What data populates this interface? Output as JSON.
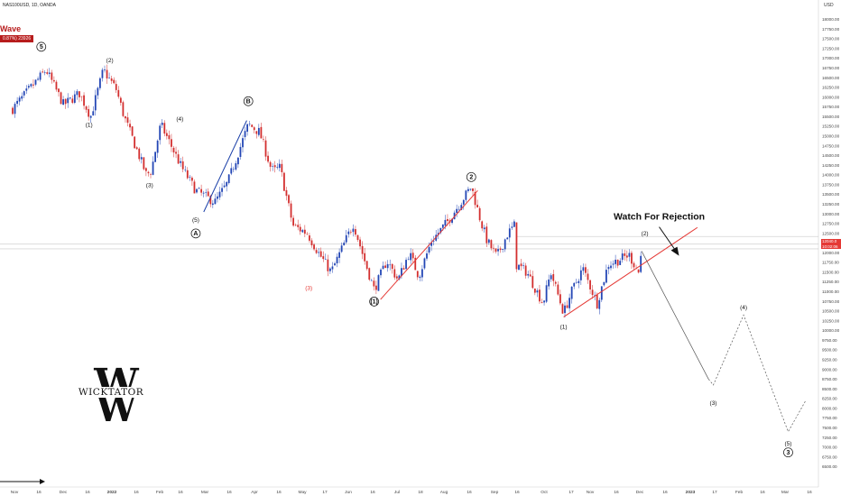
{
  "header": {
    "symbol": "NAS100USD, 1D, OANDA",
    "wave_label": "Wave",
    "change_text": "0.87%) 23926",
    "currency": "USD"
  },
  "price_badge": {
    "price": "12040.0",
    "countdown": "10:02:06"
  },
  "logo": {
    "letters": "W",
    "word": "WICKTATOR"
  },
  "chart_data": {
    "type": "candlestick",
    "title": "",
    "y_axis": {
      "min": 6000,
      "max": 18300,
      "ticks": [
        6500,
        6750,
        7000,
        7250,
        7500,
        7750,
        8000,
        8250,
        8500,
        8750,
        9000,
        9250,
        9500,
        9750,
        10000,
        10250,
        10500,
        10750,
        11000,
        11250,
        11500,
        11750,
        12000,
        12250,
        12500,
        12750,
        13000,
        13250,
        13500,
        13750,
        14000,
        14250,
        14500,
        14750,
        15000,
        15250,
        15500,
        15750,
        16000,
        16250,
        16500,
        16750,
        17000,
        17250,
        17500,
        17750,
        18000
      ]
    },
    "x_axis": {
      "labels": [
        "Nov",
        "16",
        "Dec",
        "16",
        "2022",
        "16",
        "Feb",
        "16",
        "Mar",
        "16",
        "Apr",
        "16",
        "May",
        "17",
        "Jun",
        "16",
        "Jul",
        "18",
        "Aug",
        "16",
        "Sep",
        "16",
        "Oct",
        "17",
        "Nov",
        "16",
        "Dec",
        "16",
        "2023",
        "17",
        "Feb",
        "16",
        "Mar",
        "16"
      ]
    },
    "price_path": [
      [
        "2021-11-01",
        15700
      ],
      [
        "2021-11-22",
        16700
      ],
      [
        "2021-12-03",
        15800
      ],
      [
        "2021-12-13",
        16100
      ],
      [
        "2021-12-20",
        15500
      ],
      [
        "2021-12-28",
        16700
      ],
      [
        "2022-01-05",
        16200
      ],
      [
        "2022-01-10",
        15500
      ],
      [
        "2022-01-24",
        14000
      ],
      [
        "2022-01-27",
        14100
      ],
      [
        "2022-02-02",
        15300
      ],
      [
        "2022-02-08",
        14800
      ],
      [
        "2022-02-15",
        14200
      ],
      [
        "2022-02-24",
        13600
      ],
      [
        "2022-03-08",
        13300
      ],
      [
        "2022-03-16",
        13800
      ],
      [
        "2022-03-29",
        15300
      ],
      [
        "2022-04-05",
        15100
      ],
      [
        "2022-04-12",
        14200
      ],
      [
        "2022-04-14",
        14100
      ],
      [
        "2022-04-18",
        14200
      ],
      [
        "2022-04-20",
        13800
      ],
      [
        "2022-04-26",
        12700
      ],
      [
        "2022-05-05",
        12500
      ],
      [
        "2022-05-12",
        12000
      ],
      [
        "2022-05-20",
        11500
      ],
      [
        "2022-05-30",
        12400
      ],
      [
        "2022-06-03",
        12750
      ],
      [
        "2022-06-10",
        11800
      ],
      [
        "2022-06-16",
        11050
      ],
      [
        "2022-06-24",
        11800
      ],
      [
        "2022-07-01",
        11300
      ],
      [
        "2022-07-08",
        12000
      ],
      [
        "2022-07-14",
        11400
      ],
      [
        "2022-07-22",
        12300
      ],
      [
        "2022-08-01",
        12800
      ],
      [
        "2022-08-16",
        13700
      ],
      [
        "2022-08-22",
        12800
      ],
      [
        "2022-08-26",
        12300
      ],
      [
        "2022-08-29",
        12100
      ],
      [
        "2022-09-01",
        11900
      ],
      [
        "2022-09-08",
        12500
      ],
      [
        "2022-09-12",
        12700
      ],
      [
        "2022-09-13",
        11700
      ],
      [
        "2022-09-20",
        11500
      ],
      [
        "2022-09-30",
        10700
      ],
      [
        "2022-10-05",
        11500
      ],
      [
        "2022-10-13",
        10450
      ],
      [
        "2022-10-18",
        11000
      ],
      [
        "2022-10-25",
        11600
      ],
      [
        "2022-11-03",
        10700
      ],
      [
        "2022-11-10",
        11700
      ],
      [
        "2022-11-16",
        11800
      ],
      [
        "2022-11-23",
        11950
      ],
      [
        "2022-11-29",
        11500
      ],
      [
        "2022-12-01",
        12050
      ]
    ],
    "projection": {
      "points": [
        [
          "2022-12-01",
          12040
        ],
        [
          "2023-01-12",
          8750
        ],
        [
          "2023-01-15",
          8600
        ],
        [
          "2023-02-03",
          10400
        ],
        [
          "2023-03-03",
          7400
        ],
        [
          "2023-03-14",
          8200
        ]
      ],
      "labels": [
        {
          "text": "(3)",
          "x": "2023-01-15",
          "y": 8100
        },
        {
          "text": "(4)",
          "x": "2023-02-03",
          "y": 10550
        },
        {
          "text": "(5)",
          "x": "2023-03-03",
          "y": 7050
        },
        {
          "text": "3",
          "x": "2023-03-03",
          "y": 6820,
          "circled": true
        }
      ]
    },
    "annotation": {
      "text": "Watch For Rejection",
      "x": "2022-12-12",
      "y": 12850
    },
    "trendlines": [
      {
        "from": [
          "2022-06-20",
          10800
        ],
        "to": [
          "2022-08-20",
          13600
        ],
        "color": "#e53935"
      },
      {
        "from": [
          "2022-10-13",
          10350
        ],
        "to": [
          "2023-01-05",
          12650
        ],
        "color": "#e53935"
      },
      {
        "from": [
          "2022-03-01",
          13050
        ],
        "to": [
          "2022-03-28",
          15400
        ],
        "color": "#1a3fa8"
      }
    ],
    "reference_lines": [
      12420,
      12220,
      12100
    ],
    "wave_labels": [
      {
        "text": "5",
        "x": "2021-11-19",
        "y": 17250,
        "circled": true
      },
      {
        "text": "(2)",
        "x": "2022-01-01",
        "y": 16900
      },
      {
        "text": "(1)",
        "x": "2021-12-19",
        "y": 15250
      },
      {
        "text": "(3)",
        "x": "2022-01-26",
        "y": 13700
      },
      {
        "text": "(4)",
        "x": "2022-02-14",
        "y": 15400
      },
      {
        "text": "(5)",
        "x": "2022-02-24",
        "y": 12800
      },
      {
        "text": "A",
        "x": "2022-02-24",
        "y": 12450,
        "circled": true
      },
      {
        "text": "B",
        "x": "2022-03-29",
        "y": 15850,
        "circled": true
      },
      {
        "text": "(1)",
        "x": "2022-06-16",
        "y": 10700,
        "circled": true
      },
      {
        "text": "2",
        "x": "2022-08-16",
        "y": 13900,
        "circled": true
      },
      {
        "text": "(1)",
        "x": "2022-10-13",
        "y": 10050
      },
      {
        "text": "(2)",
        "x": "2022-12-03",
        "y": 12450
      },
      {
        "text": "(3)",
        "x": "2022-05-06",
        "y": 11050,
        "color": "#e53935"
      }
    ]
  }
}
